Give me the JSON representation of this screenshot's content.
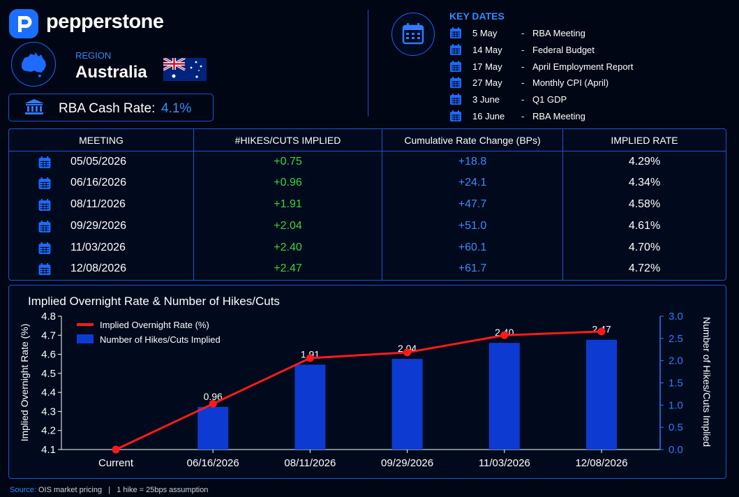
{
  "header": {
    "brand": "pepperstone",
    "region_label": "REGION",
    "country": "Australia",
    "rate_label": "RBA Cash Rate:",
    "rate_value": "4.1%"
  },
  "key_dates": {
    "title": "KEY DATES",
    "items": [
      {
        "date": "5 May",
        "event": "RBA Meeting"
      },
      {
        "date": "14 May",
        "event": "Federal Budget"
      },
      {
        "date": "17 May",
        "event": "April Employment Report"
      },
      {
        "date": "27 May",
        "event": "Monthly CPI (April)"
      },
      {
        "date": "3 June",
        "event": "Q1 GDP"
      },
      {
        "date": "16 June",
        "event": "RBA Meeting"
      }
    ]
  },
  "table": {
    "headers": [
      "MEETING",
      "#HIKES/CUTS IMPLIED",
      "Cumulative Rate Change (BPs)",
      "IMPLIED RATE"
    ],
    "rows": [
      {
        "meeting": "05/05/2026",
        "hikes": "+0.75",
        "cum": "+18.8",
        "rate": "4.29%"
      },
      {
        "meeting": "06/16/2026",
        "hikes": "+0.96",
        "cum": "+24.1",
        "rate": "4.34%"
      },
      {
        "meeting": "08/11/2026",
        "hikes": "+1.91",
        "cum": "+47.7",
        "rate": "4.58%"
      },
      {
        "meeting": "09/29/2026",
        "hikes": "+2.04",
        "cum": "+51.0",
        "rate": "4.61%"
      },
      {
        "meeting": "11/03/2026",
        "hikes": "+2.40",
        "cum": "+60.1",
        "rate": "4.70%"
      },
      {
        "meeting": "12/08/2026",
        "hikes": "+2.47",
        "cum": "+61.7",
        "rate": "4.72%"
      }
    ]
  },
  "chart_data": {
    "type": "bar",
    "title": "Implied Overnight Rate & Number of Hikes/Cuts",
    "categories": [
      "Current",
      "06/16/2026",
      "08/11/2026",
      "09/29/2026",
      "11/03/2026",
      "12/08/2026"
    ],
    "series": [
      {
        "name": "Implied Overnight Rate (%)",
        "type": "line",
        "axis": "left",
        "values": [
          4.1,
          4.34,
          4.58,
          4.61,
          4.7,
          4.72
        ]
      },
      {
        "name": "Number of Hikes/Cuts Implied",
        "type": "bar",
        "axis": "right",
        "values": [
          null,
          0.96,
          1.91,
          2.04,
          2.4,
          2.47
        ]
      }
    ],
    "bar_labels": [
      "",
      "0.96",
      "1.91",
      "2.04",
      "2.40",
      "2.47"
    ],
    "ylabel": "Implied Overnight Rate (%)",
    "y2label": "Number of Hikes/Cuts Implied",
    "ylim": [
      4.1,
      4.8
    ],
    "y2lim": [
      0.0,
      3.0
    ],
    "yticks": [
      "4.1",
      "4.2",
      "4.3",
      "4.4",
      "4.5",
      "4.6",
      "4.7",
      "4.8"
    ],
    "y2ticks": [
      "0.0",
      "0.5",
      "1.0",
      "1.5",
      "2.0",
      "2.5",
      "3.0"
    ],
    "legend": "top-left",
    "grid": false,
    "colors": {
      "line": "#ff1a1a",
      "bar": "#0d3bd1",
      "right_axis": "#2f7bff"
    }
  },
  "footer": {
    "source_label": "Source:",
    "source_text": "OIS market pricing   |   1 hike = 25bps assumption"
  }
}
